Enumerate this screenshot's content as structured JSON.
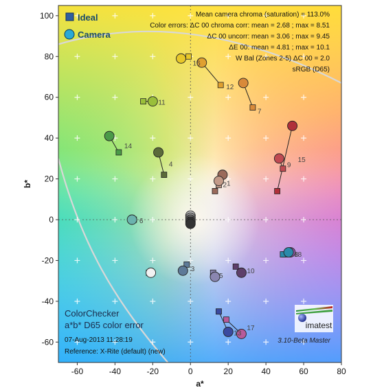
{
  "chart_data": {
    "type": "scatter",
    "title": "",
    "xlabel": "a*",
    "ylabel": "b*",
    "xlim": [
      -70,
      80
    ],
    "ylim": [
      -70,
      105
    ],
    "xticks": [
      -60,
      -40,
      -20,
      0,
      20,
      40,
      60,
      80
    ],
    "yticks": [
      -60,
      -40,
      -20,
      0,
      20,
      40,
      60,
      80,
      100
    ],
    "xtick_labels": [
      "-60",
      "-40",
      "-20",
      "0",
      "20",
      "40",
      "60",
      "80"
    ],
    "ytick_labels": [
      "-60",
      "-40",
      "-20",
      "0",
      "20",
      "40",
      "60",
      "80",
      "100"
    ],
    "grid": "dotted lines at a*=0 and b*=0, plus-shaped markers at every 20-unit intersection",
    "background": "sRGB a*b* color gamut at L=50",
    "legend": {
      "placement": "top-left",
      "items": [
        {
          "label": "Ideal",
          "marker": "square",
          "color": "#2f5fa0"
        },
        {
          "label": "Camera",
          "marker": "circle",
          "color": "#2aa9d6"
        }
      ]
    },
    "stats": [
      "Mean camera chroma (saturation) = 113.0%",
      "Color errors: ΔC 00 chroma corr:  mean = 2.68 ;  max = 8.51",
      "ΔC 00 uncorr:  mean = 3.06 ;  max = 9.45",
      "ΔE 00:  mean = 4.81 ;  max = 10.1",
      "W Bal (Zones 2-5) ΔC 00 = 2.0",
      "sRGB (D65)"
    ],
    "info": {
      "title": "ColorChecker",
      "subtitle": "a*b* D65 color error",
      "date": "07-Aug-2013 11:28:19",
      "reference": "Reference: X-Rite (default) (new)"
    },
    "logo_text": "imatest",
    "version": "3.10-Beta  Master",
    "patches": [
      {
        "id": "1",
        "ideal": [
          13,
          14
        ],
        "camera": [
          17,
          22
        ],
        "color": "#9a6a5a"
      },
      {
        "id": "2",
        "ideal": [
          15,
          17
        ],
        "camera": [
          15,
          19
        ],
        "color": "#c39a88"
      },
      {
        "id": "3",
        "ideal": [
          -2,
          -22
        ],
        "camera": [
          -4,
          -25
        ],
        "color": "#5e7a98"
      },
      {
        "id": "4",
        "ideal": [
          -14,
          22
        ],
        "camera": [
          -17,
          33
        ],
        "color": "#5b6a3a"
      },
      {
        "id": "5",
        "ideal": [
          12,
          -26
        ],
        "camera": [
          13,
          -28
        ],
        "color": "#8a86b0"
      },
      {
        "id": "6",
        "ideal": [
          -30,
          0
        ],
        "camera": [
          -31,
          0
        ],
        "color": "#6bb3ae"
      },
      {
        "id": "7",
        "ideal": [
          33,
          55
        ],
        "camera": [
          28,
          67
        ],
        "color": "#d98a3a"
      },
      {
        "id": "8",
        "ideal": [
          50,
          -17
        ],
        "camera": [
          53,
          -16
        ],
        "color": "#9a5cb0"
      },
      {
        "id": "9",
        "ideal": [
          49,
          25
        ],
        "camera": [
          47,
          30
        ],
        "color": "#c04a52"
      },
      {
        "id": "10",
        "ideal": [
          24,
          -23
        ],
        "camera": [
          27,
          -26
        ],
        "color": "#5e3f6a"
      },
      {
        "id": "11",
        "ideal": [
          -25,
          58
        ],
        "camera": [
          -20,
          58
        ],
        "color": "#9abf3a"
      },
      {
        "id": "12",
        "ideal": [
          16,
          66
        ],
        "camera": [
          6,
          77
        ],
        "color": "#e0a030"
      },
      {
        "id": "13",
        "ideal": [
          15,
          -45
        ],
        "camera": [
          20,
          -55
        ],
        "color": "#3a4aa0"
      },
      {
        "id": "14",
        "ideal": [
          -38,
          33
        ],
        "camera": [
          -43,
          41
        ],
        "color": "#4a9a48"
      },
      {
        "id": "15",
        "ideal": [
          46,
          14
        ],
        "camera": [
          54,
          46
        ],
        "color": "#b0303a"
      },
      {
        "id": "16",
        "ideal": [
          -1,
          80
        ],
        "camera": [
          -5,
          79
        ],
        "color": "#e8c82a"
      },
      {
        "id": "17",
        "ideal": [
          19,
          -49
        ],
        "camera": [
          27,
          -56
        ],
        "color": "#b85a9a"
      },
      {
        "id": "18",
        "ideal": [
          49,
          -17
        ],
        "camera": [
          52,
          -16
        ],
        "color": "#2a8aaa"
      },
      {
        "id": "19",
        "ideal": [
          -22,
          -26
        ],
        "camera": [
          -21,
          -26
        ],
        "color": "#f2f2f2"
      },
      {
        "id": "20",
        "ideal": [
          0,
          0
        ],
        "camera": [
          0,
          2
        ],
        "color": "#c8c8c8"
      },
      {
        "id": "21",
        "ideal": [
          0,
          0
        ],
        "camera": [
          0,
          1
        ],
        "color": "#a0a0a0"
      },
      {
        "id": "22",
        "ideal": [
          0,
          0
        ],
        "camera": [
          0,
          0
        ],
        "color": "#787878"
      },
      {
        "id": "23",
        "ideal": [
          0,
          0
        ],
        "camera": [
          0,
          -1
        ],
        "color": "#555555"
      },
      {
        "id": "24",
        "ideal": [
          0,
          0
        ],
        "camera": [
          0,
          -2
        ],
        "color": "#333333"
      }
    ]
  }
}
